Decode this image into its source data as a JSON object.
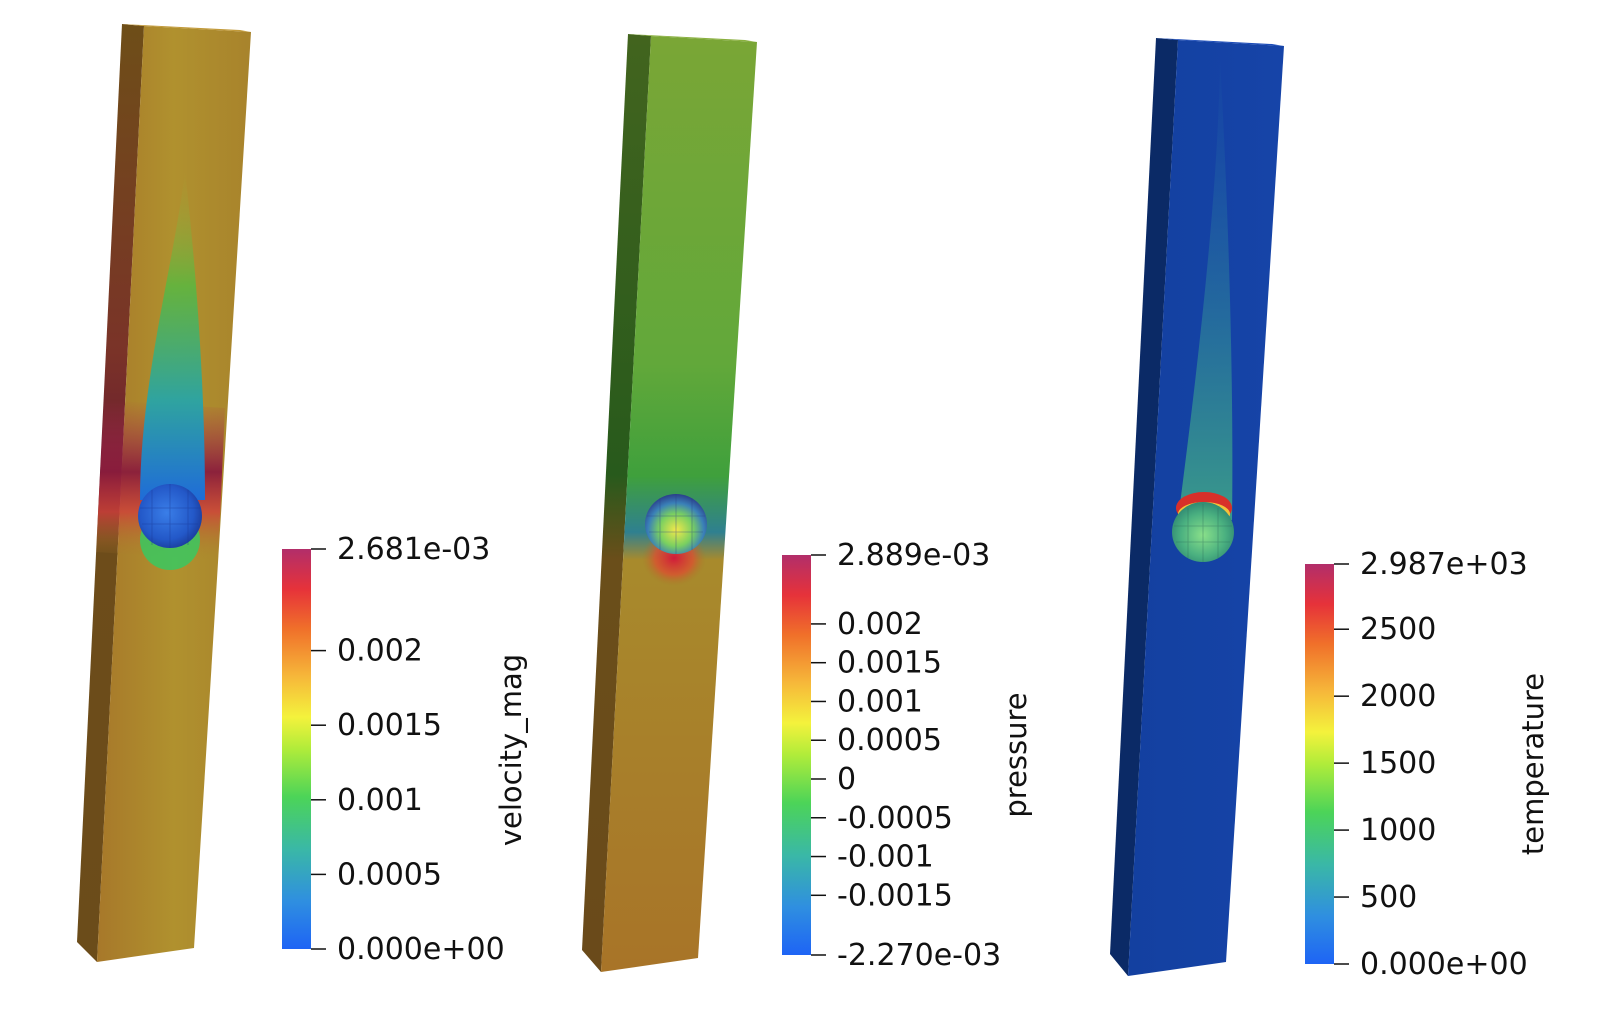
{
  "colorbar_colors": [
    "#3b4cc0",
    "#1e6cf5",
    "#2f9ed8",
    "#3ab8a6",
    "#52cf52",
    "#a6e63a",
    "#f2f23a",
    "#f7c33a",
    "#f08a2a",
    "#ea3a2e",
    "#c9305a",
    "#b03070"
  ],
  "panels": [
    {
      "id": "velocity",
      "title": "velocity_mag",
      "range": [
        0,
        0.002681
      ],
      "ticks": [
        {
          "value": 0.002681,
          "label": "2.681e-03"
        },
        {
          "value": 0.002,
          "label": "0.002"
        },
        {
          "value": 0.0015,
          "label": "0.0015"
        },
        {
          "value": 0.001,
          "label": "0.001"
        },
        {
          "value": 0.0005,
          "label": "0.0005"
        },
        {
          "value": 0,
          "label": "0.000e+00"
        }
      ]
    },
    {
      "id": "pressure",
      "title": "pressure",
      "range": [
        -0.00227,
        0.002889
      ],
      "ticks": [
        {
          "value": 0.002889,
          "label": "2.889e-03"
        },
        {
          "value": 0.002,
          "label": "0.002"
        },
        {
          "value": 0.0015,
          "label": "0.0015"
        },
        {
          "value": 0.001,
          "label": "0.001"
        },
        {
          "value": 0.0005,
          "label": "0.0005"
        },
        {
          "value": 0,
          "label": "0"
        },
        {
          "value": -0.0005,
          "label": "-0.0005"
        },
        {
          "value": -0.001,
          "label": "-0.001"
        },
        {
          "value": -0.0015,
          "label": "-0.0015"
        },
        {
          "value": -0.00227,
          "label": "-2.270e-03"
        }
      ]
    },
    {
      "id": "temperature",
      "title": "temperature",
      "range": [
        0,
        2987
      ],
      "ticks": [
        {
          "value": 2987,
          "label": "2.987e+03"
        },
        {
          "value": 2500,
          "label": "2500"
        },
        {
          "value": 2000,
          "label": "2000"
        },
        {
          "value": 1500,
          "label": "1500"
        },
        {
          "value": 1000,
          "label": "1000"
        },
        {
          "value": 500,
          "label": "500"
        },
        {
          "value": 0,
          "label": "0.000e+00"
        }
      ]
    }
  ]
}
